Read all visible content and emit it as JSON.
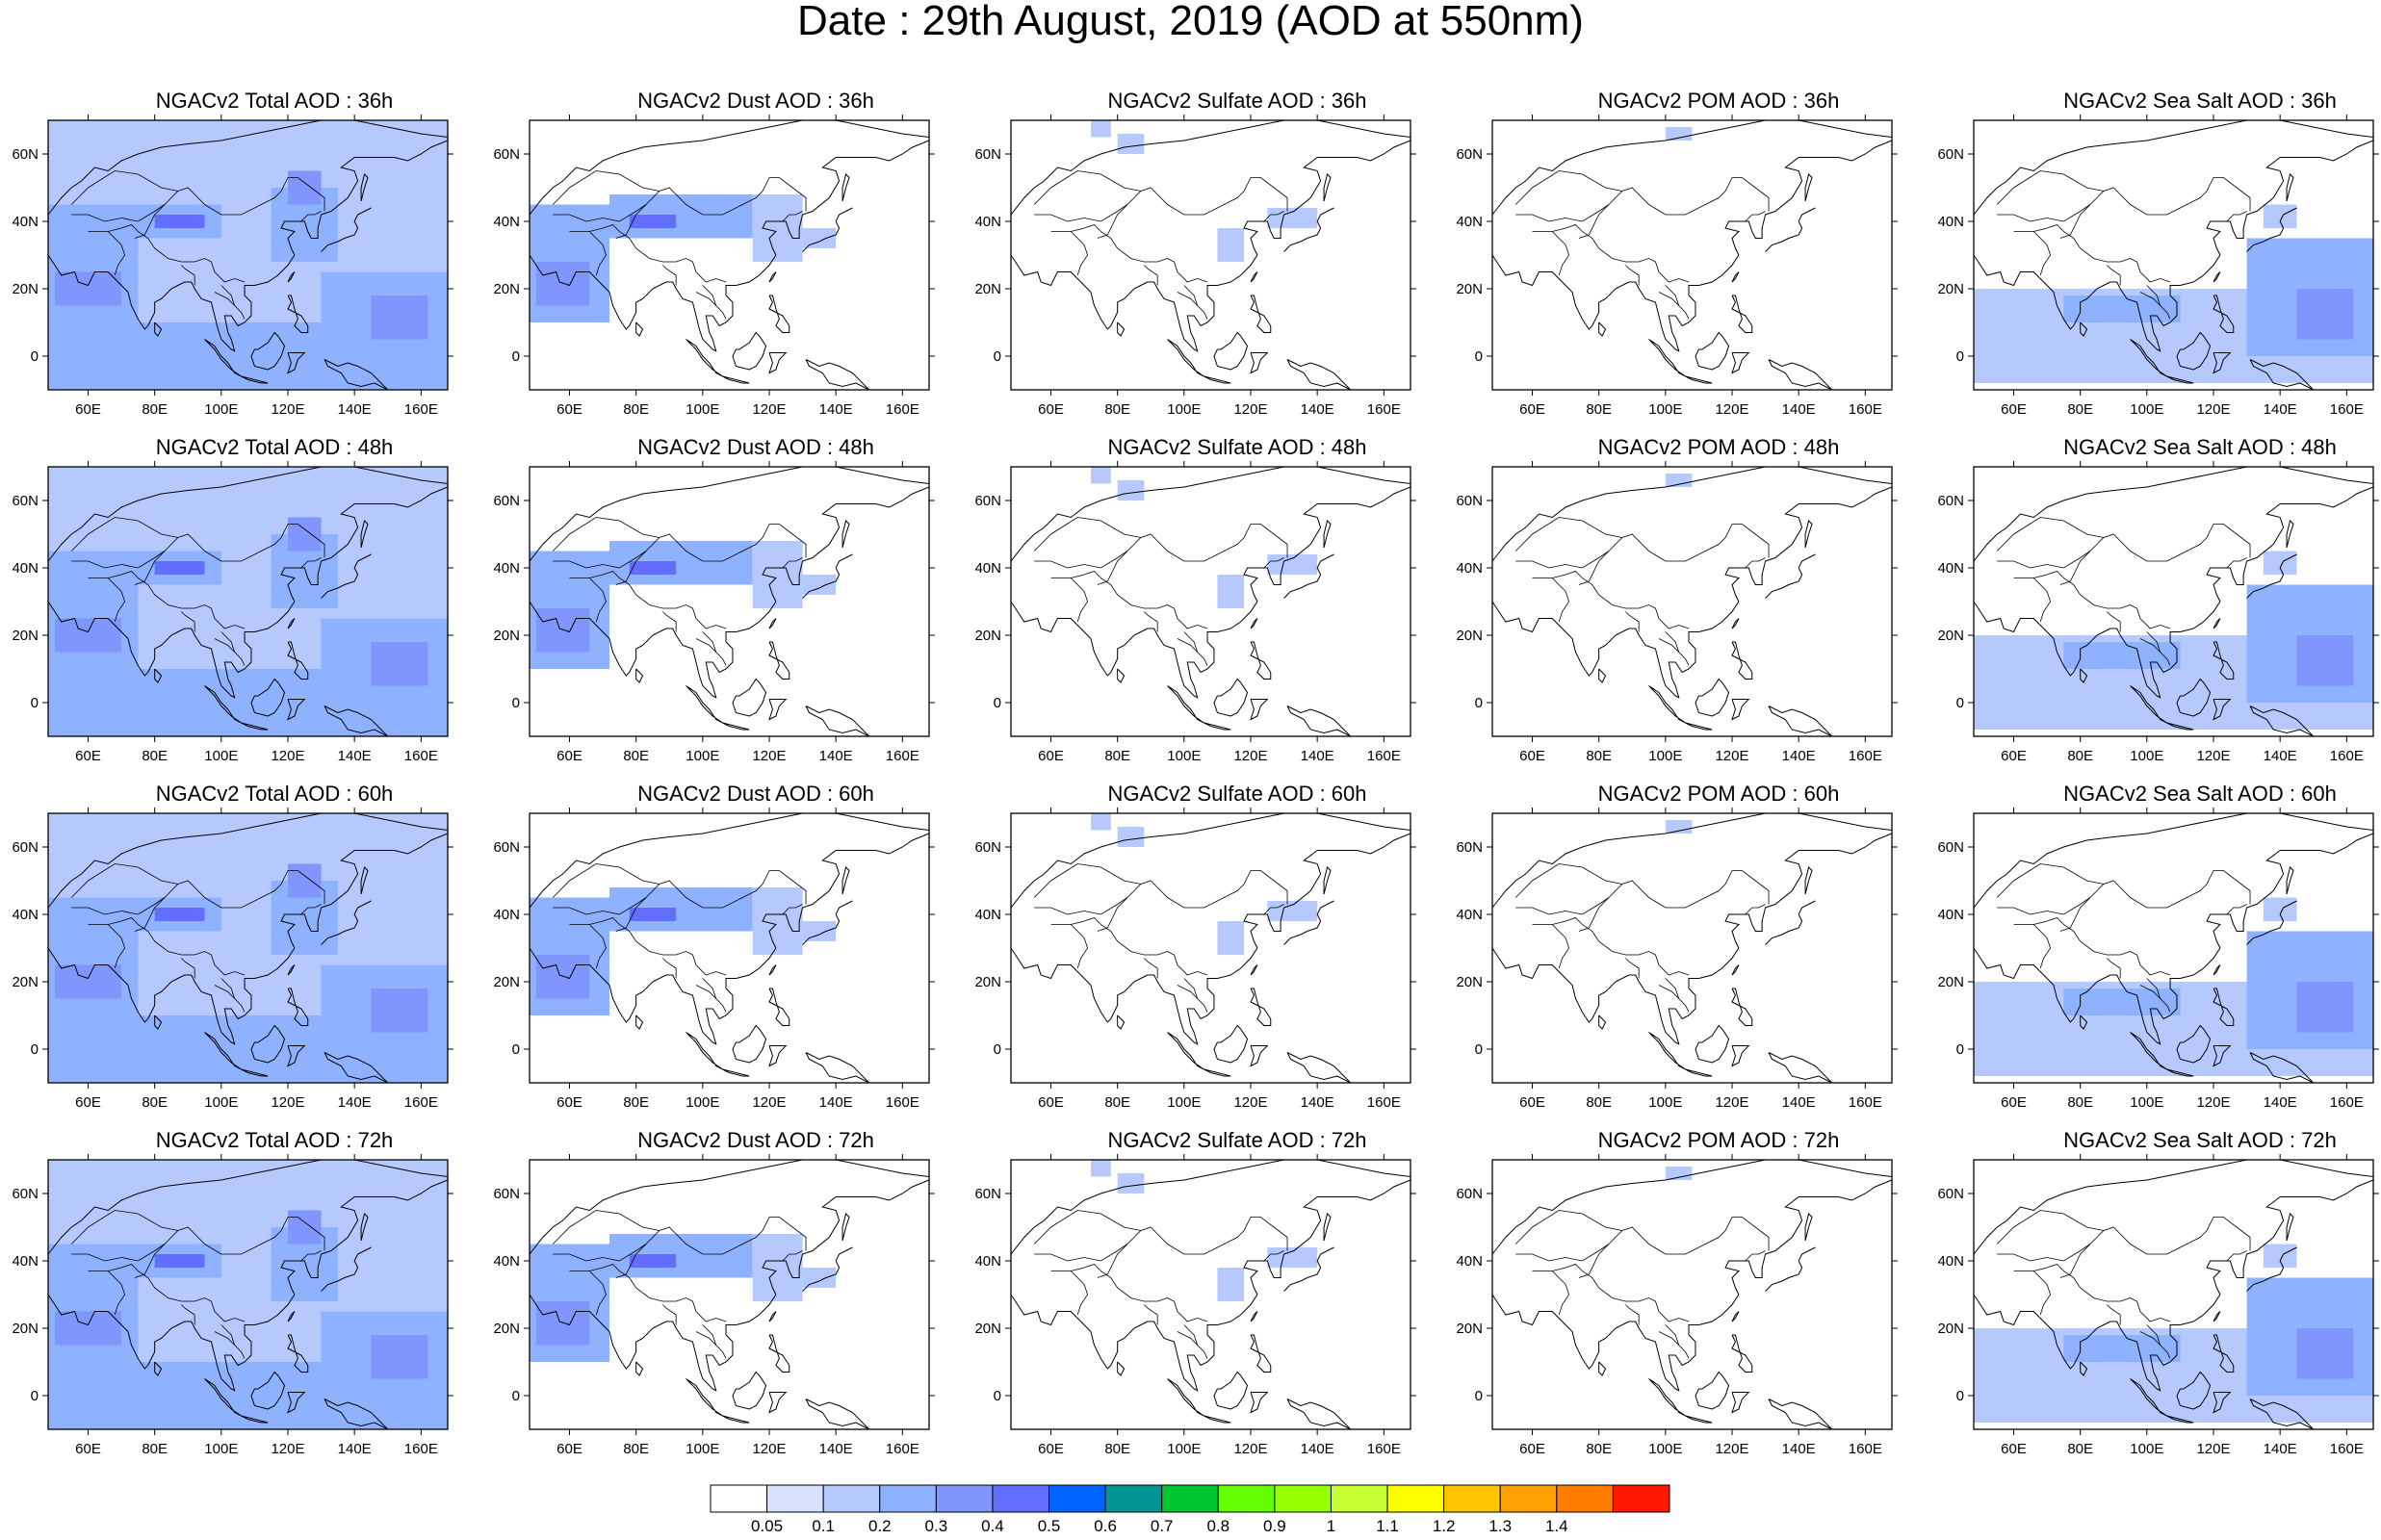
{
  "title": "Date : 29th August, 2019 (AOD at 550nm)",
  "x_ticks": [
    "60E",
    "80E",
    "100E",
    "120E",
    "140E",
    "160E"
  ],
  "y_ticks": [
    "60N",
    "40N",
    "20N",
    "0"
  ],
  "x_tick_values": [
    60,
    80,
    100,
    120,
    140,
    160
  ],
  "y_tick_values": [
    60,
    40,
    20,
    0
  ],
  "lon_range": [
    48,
    168
  ],
  "lat_range": [
    -10,
    70
  ],
  "colorbar": {
    "levels": [
      "0.05",
      "0.1",
      "0.2",
      "0.3",
      "0.4",
      "0.5",
      "0.6",
      "0.7",
      "0.8",
      "0.9",
      "1",
      "1.1",
      "1.2",
      "1.3",
      "1.4"
    ],
    "colors": [
      "#ffffff",
      "#d6e2ff",
      "#b5c9ff",
      "#8eb2ff",
      "#7f96ff",
      "#6370ff",
      "#0063ff",
      "#009696",
      "#00c633",
      "#63ff00",
      "#96ff00",
      "#c6ff33",
      "#ffff00",
      "#ffc600",
      "#ffa000",
      "#ff7c00",
      "#ff1900"
    ]
  },
  "panels": [
    {
      "title": "NGACv2 Total AOD : 36h"
    },
    {
      "title": "NGACv2 Dust AOD : 36h"
    },
    {
      "title": "NGACv2 Sulfate AOD : 36h"
    },
    {
      "title": "NGACv2 POM AOD : 36h"
    },
    {
      "title": "NGACv2 Sea Salt AOD : 36h"
    },
    {
      "title": "NGACv2 Total AOD : 48h"
    },
    {
      "title": "NGACv2 Dust AOD : 48h"
    },
    {
      "title": "NGACv2 Sulfate AOD : 48h"
    },
    {
      "title": "NGACv2 POM AOD : 48h"
    },
    {
      "title": "NGACv2 Sea Salt AOD : 48h"
    },
    {
      "title": "NGACv2 Total AOD : 60h"
    },
    {
      "title": "NGACv2 Dust AOD : 60h"
    },
    {
      "title": "NGACv2 Sulfate AOD : 60h"
    },
    {
      "title": "NGACv2 POM AOD : 60h"
    },
    {
      "title": "NGACv2 Sea Salt AOD : 60h"
    },
    {
      "title": "NGACv2 Total AOD : 72h"
    },
    {
      "title": "NGACv2 Dust AOD : 72h"
    },
    {
      "title": "NGACv2 Sulfate AOD : 72h"
    },
    {
      "title": "NGACv2 POM AOD : 72h"
    },
    {
      "title": "NGACv2 Sea Salt  AOD : 72h"
    }
  ]
}
